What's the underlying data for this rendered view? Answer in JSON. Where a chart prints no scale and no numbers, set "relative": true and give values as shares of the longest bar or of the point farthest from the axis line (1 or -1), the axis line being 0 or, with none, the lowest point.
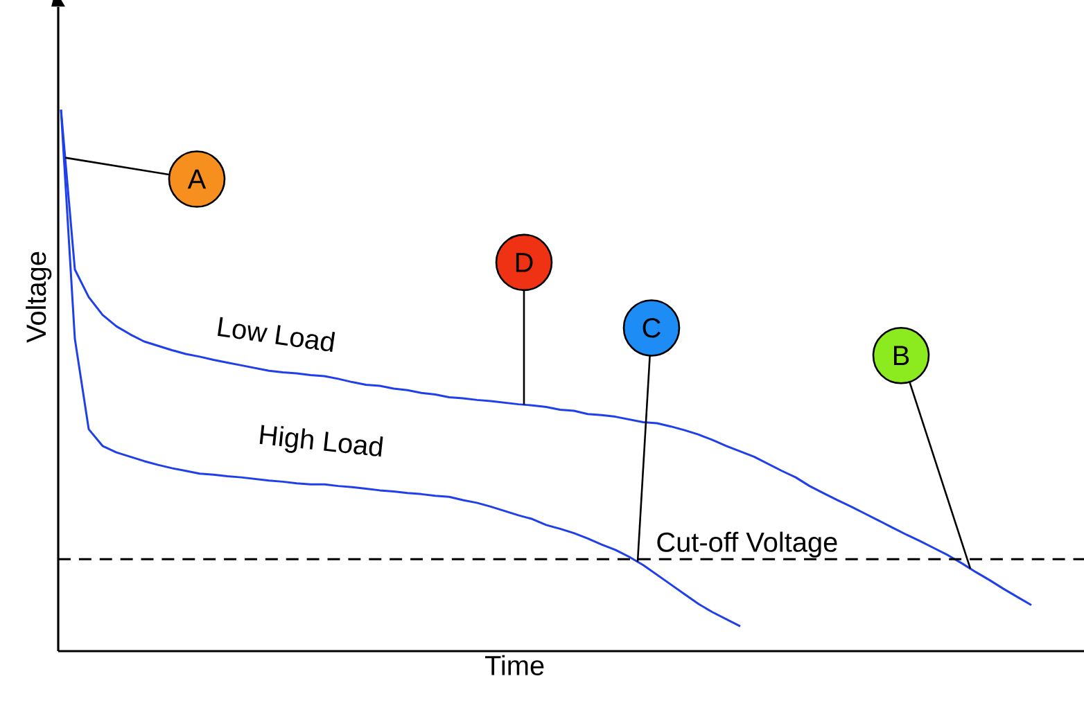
{
  "chart_data": {
    "type": "line",
    "xlabel": "Time",
    "ylabel": "Voltage",
    "relative": true,
    "categories": [
      null,
      null,
      null,
      null,
      null,
      null,
      null,
      null,
      null,
      null,
      null,
      null,
      null,
      null,
      null,
      null,
      null,
      null,
      null,
      null,
      null,
      null,
      null,
      null,
      null,
      null,
      null,
      null,
      null,
      null,
      null,
      null,
      null,
      null,
      null,
      null,
      null,
      null,
      null,
      null,
      null,
      null,
      null,
      null,
      null,
      null,
      null,
      null,
      null,
      null,
      null,
      null,
      null,
      null,
      null,
      null,
      null,
      null,
      null,
      null,
      null,
      null,
      null,
      null,
      null,
      null,
      null,
      null,
      null,
      null,
      null
    ],
    "series": [
      {
        "name": "Low Load",
        "color": "#1f3fea",
        "values": [
          1.0,
          0.705,
          0.654,
          0.621,
          0.6,
          0.585,
          0.572,
          0.564,
          0.556,
          0.549,
          0.544,
          0.538,
          0.533,
          0.528,
          0.523,
          0.518,
          0.515,
          0.513,
          0.51,
          0.508,
          0.503,
          0.497,
          0.492,
          0.49,
          0.485,
          0.482,
          0.477,
          0.474,
          0.469,
          0.467,
          0.464,
          0.462,
          0.459,
          0.456,
          0.454,
          0.451,
          0.446,
          0.444,
          0.438,
          0.436,
          0.433,
          0.428,
          0.423,
          0.421,
          0.415,
          0.408,
          0.4,
          0.39,
          0.379,
          0.369,
          0.359,
          0.346,
          0.333,
          0.321,
          0.305,
          0.292,
          0.279,
          0.267,
          0.254,
          0.241,
          0.228,
          0.215,
          0.203,
          0.19,
          0.177,
          0.162,
          0.146,
          0.131,
          0.115,
          0.1,
          0.085
        ]
      },
      {
        "name": "High Load",
        "color": "#1f3fea",
        "values": [
          1.0,
          0.577,
          0.41,
          0.379,
          0.367,
          0.359,
          0.351,
          0.344,
          0.338,
          0.333,
          0.328,
          0.326,
          0.323,
          0.321,
          0.318,
          0.315,
          0.313,
          0.31,
          0.308,
          0.308,
          0.305,
          0.303,
          0.3,
          0.297,
          0.295,
          0.292,
          0.29,
          0.287,
          0.285,
          0.279,
          0.274,
          0.267,
          0.259,
          0.251,
          0.244,
          0.233,
          0.226,
          0.218,
          0.208,
          0.197,
          0.187,
          0.174,
          0.159,
          0.141,
          0.123,
          0.105,
          0.087,
          0.072,
          0.059,
          0.046,
          null,
          null,
          null,
          null,
          null,
          null,
          null,
          null,
          null,
          null,
          null,
          null,
          null,
          null,
          null,
          null,
          null,
          null,
          null,
          null,
          null
        ]
      }
    ],
    "ref_lines": [
      {
        "axis": "y",
        "value": 0.17,
        "label": "Cut-off Voltage",
        "line_style": "dashed"
      }
    ],
    "annotations": [
      "A",
      "D",
      "C",
      "B"
    ]
  }
}
